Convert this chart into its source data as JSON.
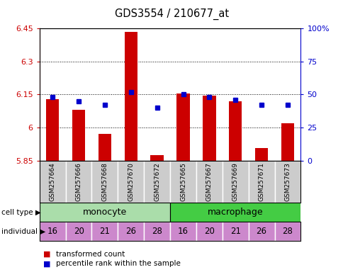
{
  "title": "GDS3554 / 210677_at",
  "samples": [
    "GSM257664",
    "GSM257666",
    "GSM257668",
    "GSM257670",
    "GSM257672",
    "GSM257665",
    "GSM257667",
    "GSM257669",
    "GSM257671",
    "GSM257673"
  ],
  "transformed_counts": [
    6.13,
    6.08,
    5.97,
    6.435,
    5.875,
    6.155,
    6.145,
    6.12,
    5.905,
    6.02
  ],
  "percentile_ranks": [
    48,
    45,
    42,
    52,
    40,
    50,
    48,
    46,
    42,
    42
  ],
  "cell_types": [
    "monocyte",
    "monocyte",
    "monocyte",
    "monocyte",
    "monocyte",
    "macrophage",
    "macrophage",
    "macrophage",
    "macrophage",
    "macrophage"
  ],
  "individuals": [
    16,
    20,
    21,
    26,
    28,
    16,
    20,
    21,
    26,
    28
  ],
  "ylim": [
    5.85,
    6.45
  ],
  "yticks": [
    5.85,
    6.0,
    6.15,
    6.3,
    6.45
  ],
  "ytick_labels": [
    "5.85",
    "6",
    "6.15",
    "6.3",
    "6.45"
  ],
  "right_yticks": [
    0,
    25,
    50,
    75,
    100
  ],
  "right_ytick_labels": [
    "0",
    "25",
    "50",
    "75",
    "100%"
  ],
  "bar_color": "#cc0000",
  "dot_color": "#0000cc",
  "monocyte_color": "#aaddaa",
  "macrophage_color": "#44cc44",
  "individual_color": "#cc88cc",
  "label_bg_color": "#cccccc",
  "legend_bar_label": "transformed count",
  "legend_dot_label": "percentile rank within the sample"
}
